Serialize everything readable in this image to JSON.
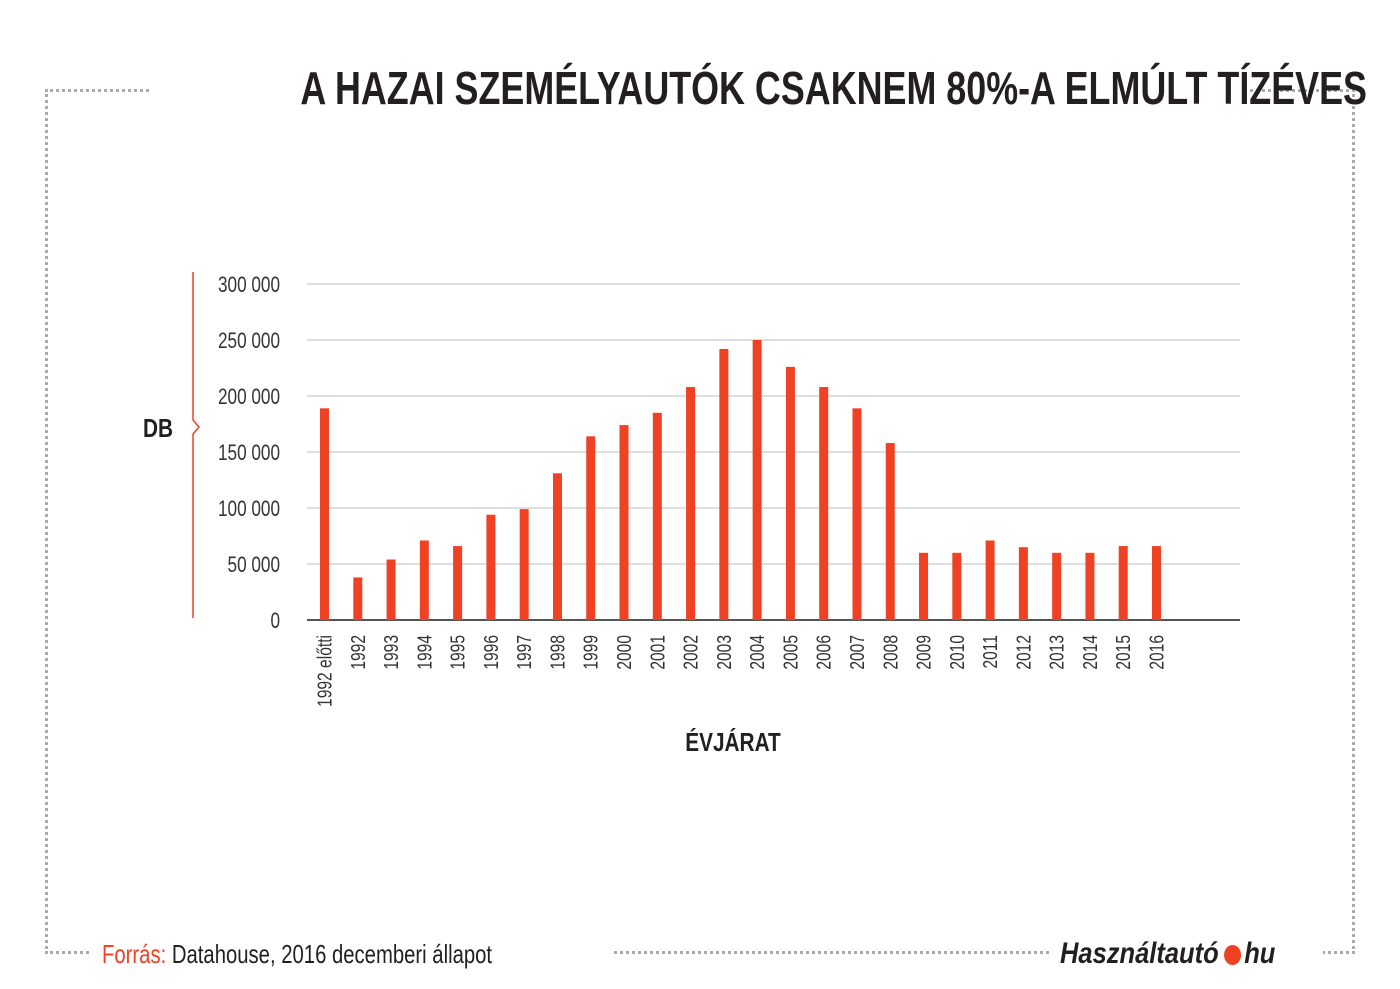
{
  "title": "A HAZAI SZEMÉLYAUTÓK CSAKNEM 80%-A ELMÚLT TÍZÉVES",
  "footer": {
    "source_label": "Forrás:",
    "source_text": "Datahouse, 2016 decemberi állapot"
  },
  "logo": {
    "text_main": "Használtautó",
    "text_tld": "hu"
  },
  "colors": {
    "bar": "#ef4123",
    "grid": "#cccccc",
    "axis": "#555555",
    "accent": "#ef4123"
  },
  "chart_data": {
    "type": "bar",
    "title": "A HAZAI SZEMÉLYAUTÓK CSAKNEM 80%-A ELMÚLT TÍZÉVES",
    "xlabel": "ÉVJÁRAT",
    "ylabel": "DB",
    "ylim": [
      0,
      300000
    ],
    "yticks": [
      0,
      50000,
      100000,
      150000,
      200000,
      250000,
      300000
    ],
    "ytick_labels": [
      "0",
      "50 000",
      "100 000",
      "150 000",
      "200 000",
      "250 000",
      "300 000"
    ],
    "grid": true,
    "categories": [
      "1992 előtti",
      "1992",
      "1993",
      "1994",
      "1995",
      "1996",
      "1997",
      "1998",
      "1999",
      "2000",
      "2001",
      "2002",
      "2003",
      "2004",
      "2005",
      "2006",
      "2007",
      "2008",
      "2009",
      "2010",
      "2011",
      "2012",
      "2013",
      "2014",
      "2015",
      "2016"
    ],
    "values": [
      189000,
      38000,
      54000,
      71000,
      66000,
      94000,
      99000,
      131000,
      164000,
      174000,
      185000,
      208000,
      242000,
      250000,
      226000,
      208000,
      189000,
      158000,
      60000,
      60000,
      71000,
      65000,
      60000,
      60000,
      66000,
      66000
    ]
  }
}
